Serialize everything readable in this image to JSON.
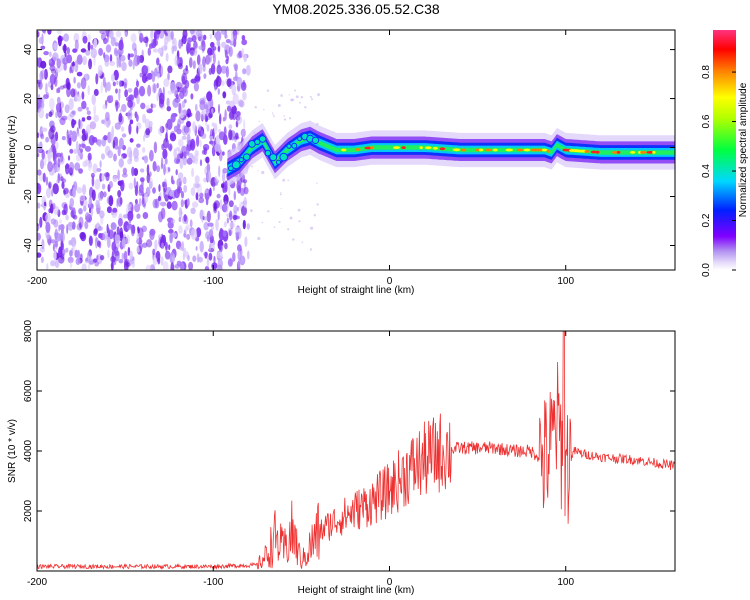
{
  "figure_title": "YM08.2025.336.05.52.C38",
  "chart_data": [
    {
      "type": "heatmap",
      "title": "YM08.2025.336.05.52.C38",
      "xlabel": "Height of straight line (km)",
      "ylabel": "Frequency (Hz)",
      "xlim": [
        -200,
        162
      ],
      "ylim": [
        -50,
        48
      ],
      "xticks": [
        -200,
        -100,
        0,
        100
      ],
      "yticks": [
        -40,
        -20,
        0,
        20,
        40
      ],
      "noise_region_x": [
        -200,
        -80
      ],
      "ridge": {
        "x": [
          -92,
          -85,
          -78,
          -72,
          -65,
          -58,
          -50,
          -45,
          -40,
          -30,
          -20,
          -10,
          0,
          20,
          40,
          60,
          80,
          88,
          92,
          95,
          100,
          120,
          140,
          162
        ],
        "frequency_hz": [
          -9,
          -6,
          0,
          3,
          -6,
          -1,
          3,
          4,
          2,
          -1,
          -1,
          0,
          0,
          0,
          -1,
          -1,
          -1,
          -1,
          -2,
          1,
          -1,
          -2,
          -2,
          -2
        ]
      },
      "colorbar": {
        "label": "Normalized spectral amplitude",
        "range": [
          0.0,
          0.97
        ],
        "ticks": [
          "0.0",
          "0.2",
          "0.4",
          "0.6",
          "0.8"
        ],
        "tick_values": [
          0.0,
          0.2,
          0.4,
          0.6,
          0.8
        ],
        "colors": [
          "#ffffff",
          "#c8b4f0",
          "#8000ff",
          "#0020ff",
          "#00d8ff",
          "#00ff40",
          "#ffff00",
          "#ff8000",
          "#ff0000",
          "#ff3380"
        ]
      }
    },
    {
      "type": "line",
      "xlabel": "Height of straight line (km)",
      "ylabel": "SNR (10 * v/v)",
      "xlim": [
        -200,
        162
      ],
      "ylim": [
        0,
        8000
      ],
      "xticks": [
        -200,
        -100,
        0,
        100
      ],
      "yticks": [
        2000,
        4000,
        6000,
        8000
      ],
      "color": "#ee3030",
      "series": [
        {
          "name": "SNR",
          "x": [
            -200,
            -150,
            -100,
            -75,
            -70,
            -65,
            -60,
            -55,
            -50,
            -40,
            -30,
            -20,
            -10,
            0,
            10,
            20,
            30,
            40,
            50,
            60,
            70,
            80,
            88,
            92,
            95,
            98,
            100,
            105,
            110,
            120,
            140,
            162
          ],
          "values": [
            150,
            150,
            150,
            200,
            500,
            1100,
            700,
            1300,
            300,
            1300,
            1700,
            2000,
            2300,
            2700,
            3300,
            3700,
            4000,
            4100,
            4100,
            4100,
            4000,
            4000,
            3700,
            4200,
            5000,
            4000,
            3500,
            4000,
            3900,
            3800,
            3700,
            3500
          ]
        }
      ]
    }
  ]
}
